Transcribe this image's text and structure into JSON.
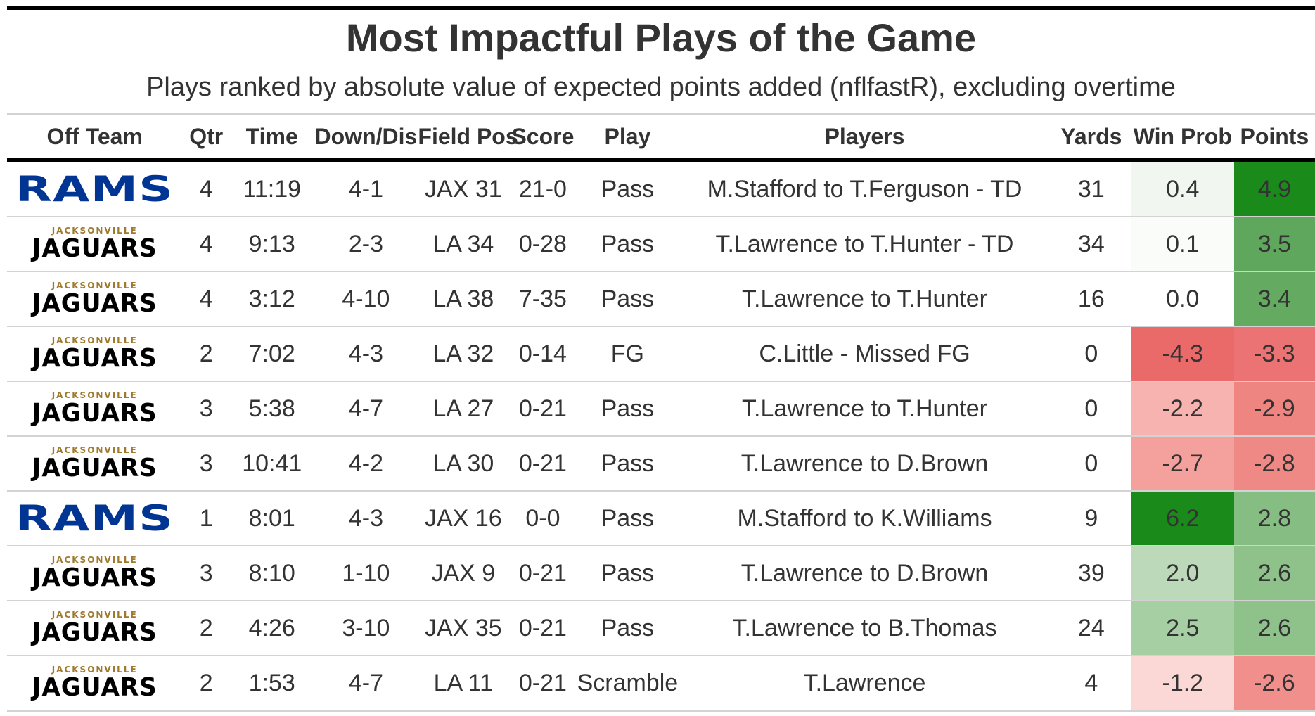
{
  "title": "Most Impactful Plays of the Game",
  "subtitle": "Plays ranked by absolute value of expected points added (nflfastR), excluding overtime",
  "columns": [
    "Off Team",
    "Qtr",
    "Time",
    "Down/Dis",
    "Field Pos",
    "Score",
    "Play",
    "Players",
    "Yards",
    "Win Prob",
    "Points"
  ],
  "teams": {
    "rams": {
      "wordmark": "RAMS",
      "color": "#003594"
    },
    "jaguars": {
      "city": "JACKSONVILLE",
      "wordmark": "JAGUARS",
      "color": "#000000",
      "accent": "#9F792C"
    }
  },
  "rows": [
    {
      "team": "rams",
      "qtr": "4",
      "time": "11:19",
      "down": "4-1",
      "field_pos": "JAX 31",
      "score": "21-0",
      "play": "Pass",
      "players": "M.Stafford to T.Ferguson - TD",
      "yards": "31",
      "win_prob": "0.4",
      "points": "4.9",
      "wp_color": "#f1f7f0",
      "pts_color": "#1a8a1a",
      "wp_text_white": false,
      "pts_text_white": true
    },
    {
      "team": "jaguars",
      "qtr": "4",
      "time": "9:13",
      "down": "2-3",
      "field_pos": "LA 34",
      "score": "0-28",
      "play": "Pass",
      "players": "T.Lawrence to T.Hunter - TD",
      "yards": "34",
      "win_prob": "0.1",
      "points": "3.5",
      "wp_color": "#f9fcf8",
      "pts_color": "#5fa75c",
      "wp_text_white": false,
      "pts_text_white": true
    },
    {
      "team": "jaguars",
      "qtr": "4",
      "time": "3:12",
      "down": "4-10",
      "field_pos": "LA 38",
      "score": "7-35",
      "play": "Pass",
      "players": "T.Lawrence to T.Hunter",
      "yards": "16",
      "win_prob": "0.0",
      "points": "3.4",
      "wp_color": "#ffffff",
      "pts_color": "#64aa60",
      "wp_text_white": false,
      "pts_text_white": true
    },
    {
      "team": "jaguars",
      "qtr": "2",
      "time": "7:02",
      "down": "4-3",
      "field_pos": "LA 32",
      "score": "0-14",
      "play": "FG",
      "players": "C.Little - Missed FG",
      "yards": "0",
      "win_prob": "-4.3",
      "points": "-3.3",
      "wp_color": "#ea6a6a",
      "pts_color": "#ec7373",
      "wp_text_white": true,
      "pts_text_white": true
    },
    {
      "team": "jaguars",
      "qtr": "3",
      "time": "5:38",
      "down": "4-7",
      "field_pos": "LA 27",
      "score": "0-21",
      "play": "Pass",
      "players": "T.Lawrence to T.Hunter",
      "yards": "0",
      "win_prob": "-2.2",
      "points": "-2.9",
      "wp_color": "#f7b3b0",
      "pts_color": "#ef8581",
      "wp_text_white": false,
      "pts_text_white": false
    },
    {
      "team": "jaguars",
      "qtr": "3",
      "time": "10:41",
      "down": "4-2",
      "field_pos": "LA 30",
      "score": "0-21",
      "play": "Pass",
      "players": "T.Lawrence to D.Brown",
      "yards": "0",
      "win_prob": "-2.7",
      "points": "-2.8",
      "wp_color": "#f4a19e",
      "pts_color": "#ef8985",
      "wp_text_white": false,
      "pts_text_white": false
    },
    {
      "team": "rams",
      "qtr": "1",
      "time": "8:01",
      "down": "4-3",
      "field_pos": "JAX 16",
      "score": "0-0",
      "play": "Pass",
      "players": "M.Stafford to K.Williams",
      "yards": "9",
      "win_prob": "6.2",
      "points": "2.8",
      "wp_color": "#1a8a1a",
      "pts_color": "#86bd82",
      "wp_text_white": true,
      "pts_text_white": false
    },
    {
      "team": "jaguars",
      "qtr": "3",
      "time": "8:10",
      "down": "1-10",
      "field_pos": "JAX 9",
      "score": "0-21",
      "play": "Pass",
      "players": "T.Lawrence to D.Brown",
      "yards": "39",
      "win_prob": "2.0",
      "points": "2.6",
      "wp_color": "#bcdab9",
      "pts_color": "#8ec28a",
      "wp_text_white": false,
      "pts_text_white": false
    },
    {
      "team": "jaguars",
      "qtr": "2",
      "time": "4:26",
      "down": "3-10",
      "field_pos": "JAX 35",
      "score": "0-21",
      "play": "Pass",
      "players": "T.Lawrence to B.Thomas",
      "yards": "24",
      "win_prob": "2.5",
      "points": "2.6",
      "wp_color": "#a6cfa3",
      "pts_color": "#8ec28a",
      "wp_text_white": false,
      "pts_text_white": false
    },
    {
      "team": "jaguars",
      "qtr": "2",
      "time": "1:53",
      "down": "4-7",
      "field_pos": "LA 11",
      "score": "0-21",
      "play": "Scramble",
      "players": "T.Lawrence",
      "yards": "4",
      "win_prob": "-1.2",
      "points": "-2.6",
      "wp_color": "#fbd8d6",
      "pts_color": "#f08f8b",
      "wp_text_white": false,
      "pts_text_white": false
    }
  ]
}
